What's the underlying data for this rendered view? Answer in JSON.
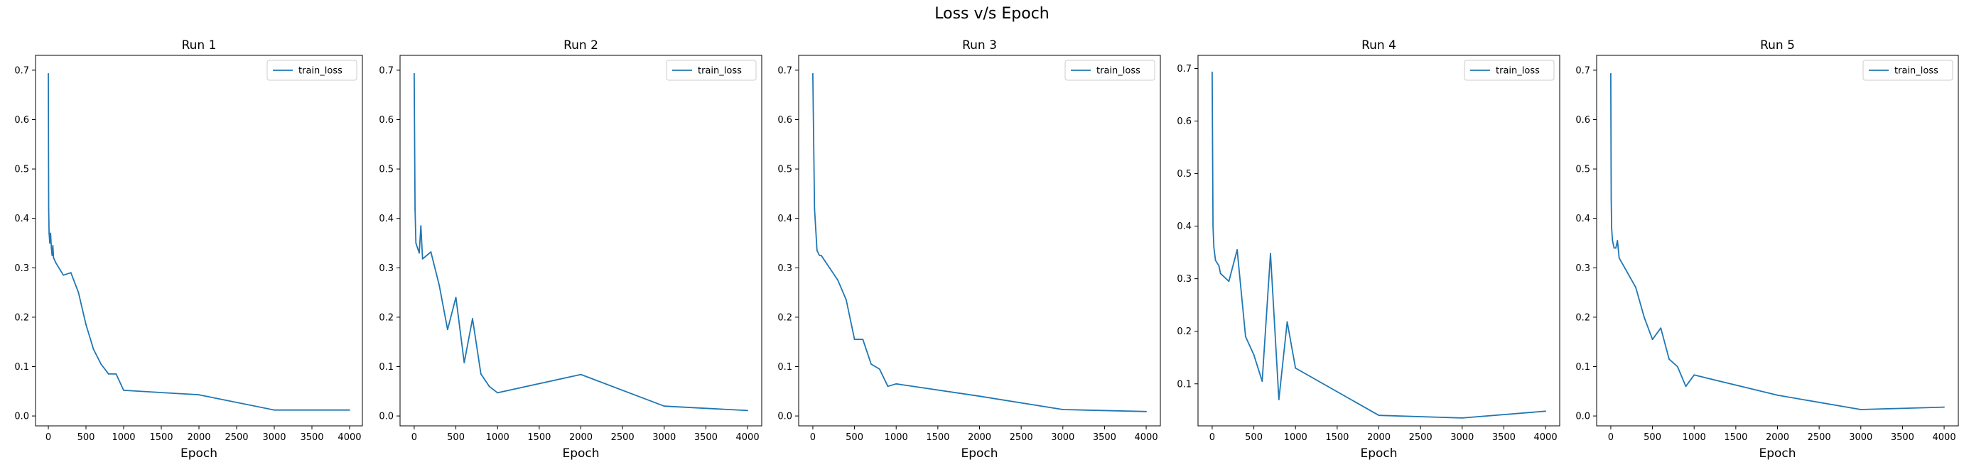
{
  "figure": {
    "suptitle": "Loss v/s Epoch"
  },
  "line_color": "#1f77b4",
  "chart_data": [
    {
      "type": "line",
      "title": "Run 1",
      "xlabel": "Epoch",
      "ylabel": "",
      "xlim": [
        -170,
        4170
      ],
      "ylim": [
        -0.02,
        0.73
      ],
      "xticks": [
        0,
        500,
        1000,
        1500,
        2000,
        2500,
        3000,
        3500,
        4000
      ],
      "yticks": [
        0.0,
        0.1,
        0.2,
        0.3,
        0.4,
        0.5,
        0.6,
        0.7
      ],
      "legend": "upper right",
      "series": [
        {
          "name": "train_loss",
          "x": [
            0,
            5,
            10,
            20,
            30,
            40,
            50,
            60,
            70,
            100,
            200,
            300,
            400,
            500,
            600,
            700,
            800,
            900,
            1000,
            2000,
            3000,
            4000
          ],
          "y": [
            0.693,
            0.42,
            0.37,
            0.35,
            0.37,
            0.34,
            0.325,
            0.345,
            0.32,
            0.31,
            0.285,
            0.29,
            0.25,
            0.185,
            0.135,
            0.105,
            0.085,
            0.085,
            0.052,
            0.043,
            0.012,
            0.012
          ]
        }
      ]
    },
    {
      "type": "line",
      "title": "Run 2",
      "xlabel": "Epoch",
      "ylabel": "",
      "xlim": [
        -170,
        4170
      ],
      "ylim": [
        -0.02,
        0.73
      ],
      "xticks": [
        0,
        500,
        1000,
        1500,
        2000,
        2500,
        3000,
        3500,
        4000
      ],
      "yticks": [
        0.0,
        0.1,
        0.2,
        0.3,
        0.4,
        0.5,
        0.6,
        0.7
      ],
      "legend": "upper right",
      "series": [
        {
          "name": "train_loss",
          "x": [
            0,
            10,
            20,
            40,
            60,
            80,
            100,
            200,
            300,
            400,
            500,
            600,
            700,
            800,
            900,
            1000,
            2000,
            3000,
            4000
          ],
          "y": [
            0.693,
            0.42,
            0.35,
            0.34,
            0.33,
            0.385,
            0.318,
            0.332,
            0.265,
            0.175,
            0.24,
            0.108,
            0.197,
            0.085,
            0.06,
            0.047,
            0.084,
            0.02,
            0.011
          ]
        }
      ]
    },
    {
      "type": "line",
      "title": "Run 3",
      "xlabel": "Epoch",
      "ylabel": "",
      "xlim": [
        -170,
        4170
      ],
      "ylim": [
        -0.02,
        0.73
      ],
      "xticks": [
        0,
        500,
        1000,
        1500,
        2000,
        2500,
        3000,
        3500,
        4000
      ],
      "yticks": [
        0.0,
        0.1,
        0.2,
        0.3,
        0.4,
        0.5,
        0.6,
        0.7
      ],
      "legend": "upper right",
      "series": [
        {
          "name": "train_loss",
          "x": [
            0,
            20,
            50,
            80,
            100,
            200,
            300,
            400,
            500,
            600,
            700,
            800,
            900,
            1000,
            2000,
            3000,
            4000
          ],
          "y": [
            0.693,
            0.42,
            0.335,
            0.325,
            0.325,
            0.3,
            0.275,
            0.235,
            0.155,
            0.155,
            0.105,
            0.095,
            0.06,
            0.065,
            0.04,
            0.013,
            0.009
          ]
        }
      ]
    },
    {
      "type": "line",
      "title": "Run 4",
      "xlabel": "Epoch",
      "ylabel": "",
      "xlim": [
        -170,
        4170
      ],
      "ylim": [
        0.02,
        0.725
      ],
      "xticks": [
        0,
        500,
        1000,
        1500,
        2000,
        2500,
        3000,
        3500,
        4000
      ],
      "yticks": [
        0.1,
        0.2,
        0.3,
        0.4,
        0.5,
        0.6,
        0.7
      ],
      "legend": "upper right",
      "series": [
        {
          "name": "train_loss",
          "x": [
            0,
            10,
            20,
            40,
            80,
            100,
            200,
            300,
            400,
            500,
            600,
            700,
            800,
            900,
            1000,
            2000,
            3000,
            4000
          ],
          "y": [
            0.693,
            0.4,
            0.36,
            0.335,
            0.325,
            0.31,
            0.295,
            0.355,
            0.19,
            0.155,
            0.105,
            0.348,
            0.07,
            0.218,
            0.13,
            0.04,
            0.035,
            0.048
          ]
        }
      ]
    },
    {
      "type": "line",
      "title": "Run 5",
      "xlabel": "Epoch",
      "ylabel": "",
      "xlim": [
        -170,
        4170
      ],
      "ylim": [
        -0.02,
        0.73
      ],
      "xticks": [
        0,
        500,
        1000,
        1500,
        2000,
        2500,
        3000,
        3500,
        4000
      ],
      "yticks": [
        0.0,
        0.1,
        0.2,
        0.3,
        0.4,
        0.5,
        0.6,
        0.7
      ],
      "legend": "upper right",
      "series": [
        {
          "name": "train_loss",
          "x": [
            0,
            5,
            10,
            20,
            40,
            60,
            80,
            100,
            200,
            300,
            400,
            500,
            600,
            700,
            800,
            900,
            1000,
            2000,
            3000,
            4000
          ],
          "y": [
            0.693,
            0.44,
            0.38,
            0.355,
            0.34,
            0.34,
            0.355,
            0.32,
            0.29,
            0.26,
            0.2,
            0.155,
            0.178,
            0.115,
            0.1,
            0.06,
            0.083,
            0.042,
            0.013,
            0.018
          ]
        }
      ]
    }
  ]
}
